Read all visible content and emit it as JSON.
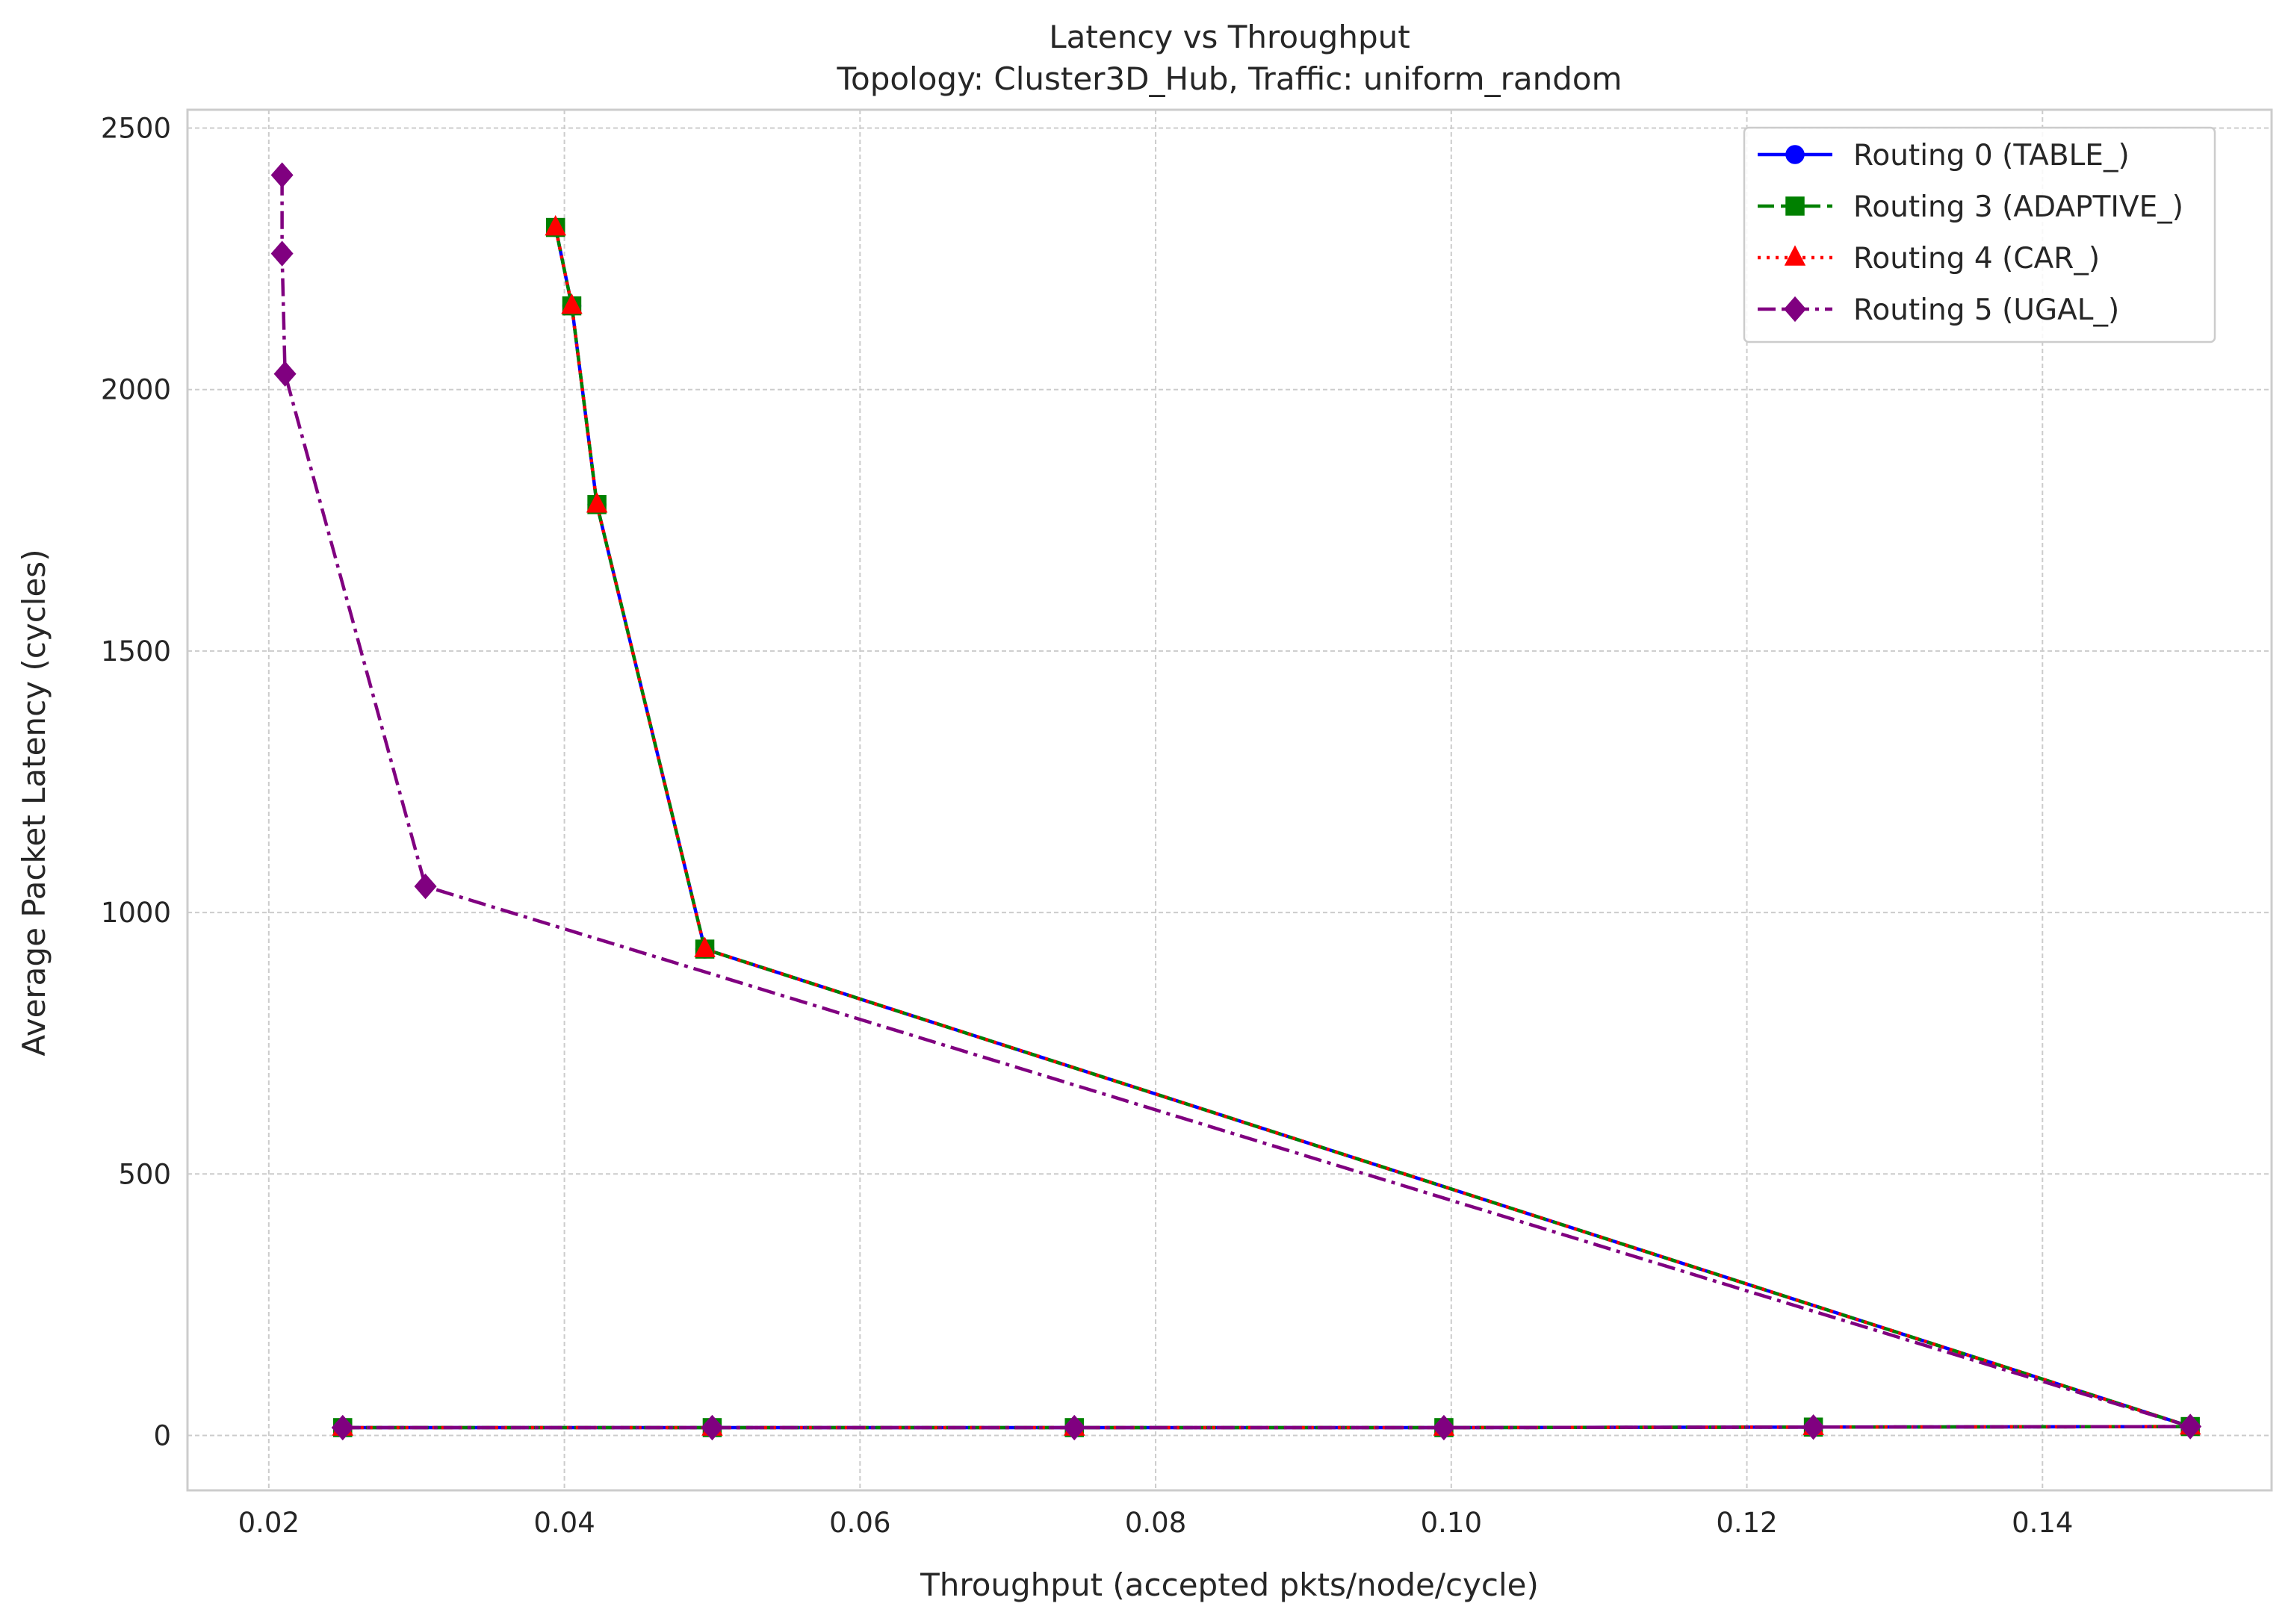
{
  "chart_data": {
    "type": "line",
    "title": "Latency vs Throughput",
    "subtitle": "Topology: Cluster3D_Hub, Traffic: uniform_random",
    "xlabel": "Throughput (accepted pkts/node/cycle)",
    "ylabel": "Average Packet Latency (cycles)",
    "xlim": [
      0.0145,
      0.1555
    ],
    "ylim": [
      -105,
      2535
    ],
    "xticks": [
      0.02,
      0.04,
      0.06,
      0.08,
      0.1,
      0.12,
      0.14
    ],
    "xtick_labels": [
      "0.02",
      "0.04",
      "0.06",
      "0.08",
      "0.10",
      "0.12",
      "0.14"
    ],
    "yticks": [
      0,
      500,
      1000,
      1500,
      2000,
      2500
    ],
    "ytick_labels": [
      "0",
      "500",
      "1000",
      "1500",
      "2000",
      "2500"
    ],
    "grid": true,
    "legend_position": "top-right",
    "series": [
      {
        "name": "Routing 0 (TABLE_)",
        "color": "#0000ff",
        "linestyle": "solid",
        "marker": "circle",
        "x": [
          0.025,
          0.05,
          0.0745,
          0.0995,
          0.1245,
          0.15,
          0.0495,
          0.0422,
          0.0405,
          0.0394
        ],
        "y": [
          15,
          15,
          15,
          15,
          16,
          17,
          930,
          1780,
          2160,
          2310
        ]
      },
      {
        "name": "Routing 3 (ADAPTIVE_)",
        "color": "#008000",
        "linestyle": "dashed",
        "marker": "square",
        "x": [
          0.025,
          0.05,
          0.0745,
          0.0995,
          0.1245,
          0.15,
          0.0495,
          0.0422,
          0.0405,
          0.0394
        ],
        "y": [
          15,
          15,
          15,
          15,
          16,
          17,
          930,
          1780,
          2160,
          2310
        ]
      },
      {
        "name": "Routing 4 (CAR_)",
        "color": "#ff0000",
        "linestyle": "dotted",
        "marker": "triangle",
        "x": [
          0.025,
          0.05,
          0.0745,
          0.0995,
          0.1245,
          0.15,
          0.0495,
          0.0422,
          0.0405,
          0.0394
        ],
        "y": [
          15,
          15,
          15,
          15,
          16,
          17,
          930,
          1780,
          2160,
          2310
        ]
      },
      {
        "name": "Routing 5 (UGAL_)",
        "color": "#800080",
        "linestyle": "dashdot",
        "marker": "diamond",
        "x": [
          0.025,
          0.05,
          0.0745,
          0.0995,
          0.1245,
          0.15,
          0.0306,
          0.0211,
          0.0209,
          0.0209
        ],
        "y": [
          15,
          15,
          15,
          15,
          16,
          17,
          1050,
          2030,
          2260,
          2410
        ]
      }
    ]
  }
}
